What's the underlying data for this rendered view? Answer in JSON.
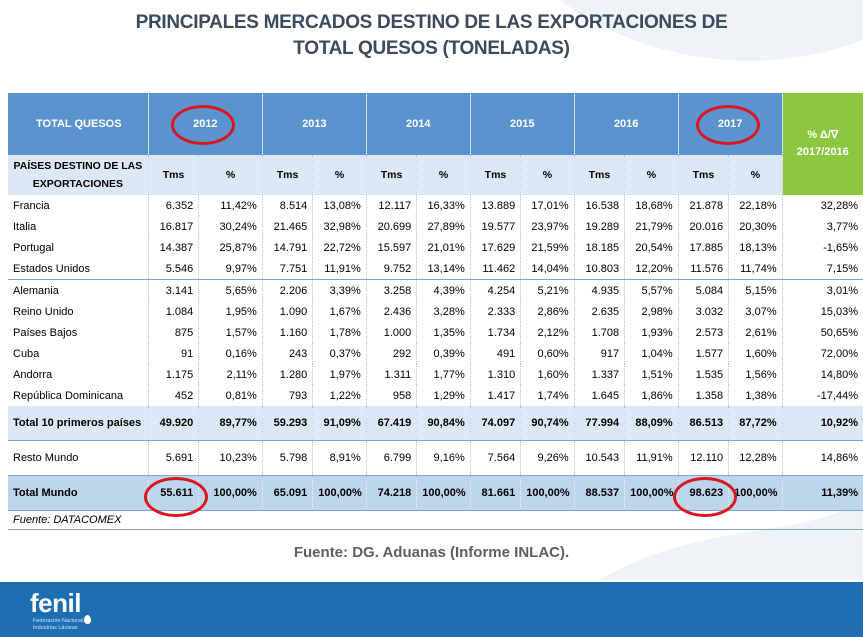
{
  "title_line1": "PRINCIPALES MERCADOS DESTINO DE LAS EXPORTACIONES DE",
  "title_line2": "TOTAL QUESOS (TONELADAS)",
  "header": {
    "total_label": "TOTAL QUESOS",
    "years": [
      "2012",
      "2013",
      "2014",
      "2015",
      "2016",
      "2017"
    ],
    "var_label_line1": "% Δ/∇",
    "var_label_line2": "2017/2016",
    "countries_label_line1": "PAÍSES DESTINO DE LAS",
    "countries_label_line2": "EXPORTACIONES",
    "tms_label": "Tms",
    "pct_label": "%"
  },
  "rows": [
    {
      "name": "Francia",
      "values": [
        "6.352",
        "11,42%",
        "8.514",
        "13,08%",
        "12.117",
        "16,33%",
        "13.889",
        "17,01%",
        "16.538",
        "18,68%",
        "21.878",
        "22,18%",
        "32,28%"
      ]
    },
    {
      "name": "Italia",
      "values": [
        "16.817",
        "30,24%",
        "21.465",
        "32,98%",
        "20.699",
        "27,89%",
        "19.577",
        "23,97%",
        "19.289",
        "21,79%",
        "20.016",
        "20,30%",
        "3,77%"
      ]
    },
    {
      "name": "Portugal",
      "values": [
        "14.387",
        "25,87%",
        "14.791",
        "22,72%",
        "15.597",
        "21,01%",
        "17.629",
        "21,59%",
        "18.185",
        "20,54%",
        "17.885",
        "18,13%",
        "-1,65%"
      ]
    },
    {
      "name": "Estados Unidos",
      "values": [
        "5.546",
        "9,97%",
        "7.751",
        "11,91%",
        "9.752",
        "13,14%",
        "11.462",
        "14,04%",
        "10.803",
        "12,20%",
        "11.576",
        "11,74%",
        "7,15%"
      ]
    },
    {
      "name": "Alemania",
      "values": [
        "3.141",
        "5,65%",
        "2.206",
        "3,39%",
        "3.258",
        "4,39%",
        "4.254",
        "5,21%",
        "4.935",
        "5,57%",
        "5.084",
        "5,15%",
        "3,01%"
      ]
    },
    {
      "name": "Reino Unido",
      "values": [
        "1.084",
        "1,95%",
        "1.090",
        "1,67%",
        "2.436",
        "3,28%",
        "2.333",
        "2,86%",
        "2.635",
        "2,98%",
        "3.032",
        "3,07%",
        "15,03%"
      ]
    },
    {
      "name": "Países Bajos",
      "values": [
        "875",
        "1,57%",
        "1.160",
        "1,78%",
        "1.000",
        "1,35%",
        "1.734",
        "2,12%",
        "1.708",
        "1,93%",
        "2.573",
        "2,61%",
        "50,65%"
      ]
    },
    {
      "name": "Cuba",
      "values": [
        "91",
        "0,16%",
        "243",
        "0,37%",
        "292",
        "0,39%",
        "491",
        "0,60%",
        "917",
        "1,04%",
        "1.577",
        "1,60%",
        "72,00%"
      ]
    },
    {
      "name": "Andorra",
      "values": [
        "1.175",
        "2,11%",
        "1.280",
        "1,97%",
        "1.311",
        "1,77%",
        "1.310",
        "1,60%",
        "1.337",
        "1,51%",
        "1.535",
        "1,56%",
        "14,80%"
      ]
    },
    {
      "name": "República Dominicana",
      "values": [
        "452",
        "0,81%",
        "793",
        "1,22%",
        "958",
        "1,29%",
        "1.417",
        "1,74%",
        "1.645",
        "1,86%",
        "1.358",
        "1,38%",
        "-17,44%"
      ]
    }
  ],
  "total10": {
    "name": "Total 10 primeros países",
    "values": [
      "49.920",
      "89,77%",
      "59.293",
      "91,09%",
      "67.419",
      "90,84%",
      "74.097",
      "90,74%",
      "77.994",
      "88,09%",
      "86.513",
      "87,72%",
      "10,92%"
    ]
  },
  "resto": {
    "name": "Resto Mundo",
    "values": [
      "5.691",
      "10,23%",
      "5.798",
      "8,91%",
      "6.799",
      "9,16%",
      "7.564",
      "9,26%",
      "10.543",
      "11,91%",
      "12.110",
      "12,28%",
      "14,86%"
    ]
  },
  "world": {
    "name": "Total Mundo",
    "values": [
      "55.611",
      "100,00%",
      "65.091",
      "100,00%",
      "74.218",
      "100,00%",
      "81.661",
      "100,00%",
      "88.537",
      "100,00%",
      "98.623",
      "100,00%",
      "11,39%"
    ]
  },
  "table_source": "Fuente: DATACOMEX",
  "source": "Fuente: DG. Aduanas (Informe INLAC).",
  "logo_text": "fenil",
  "logo_subtext": "Federación Nacional de Industrias Lácteas",
  "colors": {
    "header_blue": "#5b93cf",
    "header_green": "#8dc63f",
    "highlight_red": "#d9161c",
    "footer_blue": "#1d6fb1"
  }
}
